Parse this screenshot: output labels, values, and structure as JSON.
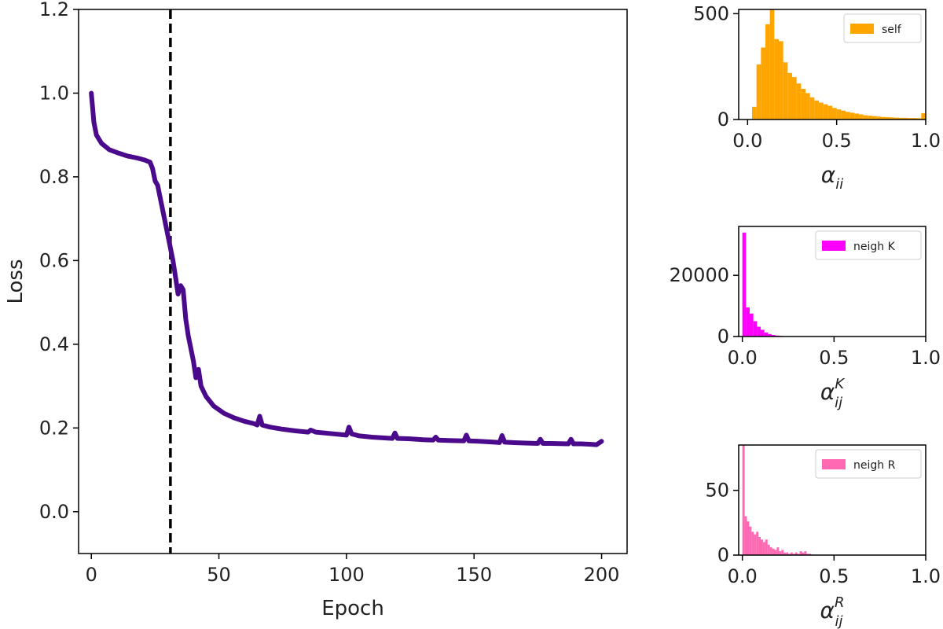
{
  "chart_data": [
    {
      "id": "loss",
      "type": "line",
      "xlabel": "Epoch",
      "ylabel": "Loss",
      "xlim": [
        -5,
        210
      ],
      "ylim": [
        -0.1,
        1.2
      ],
      "xticks": [
        0,
        50,
        100,
        150,
        200
      ],
      "xtick_labels": [
        "0",
        "50",
        "100",
        "150",
        "200"
      ],
      "yticks": [
        0.0,
        0.2,
        0.4,
        0.6,
        0.8,
        1.0,
        1.2
      ],
      "ytick_labels": [
        "0.0",
        "0.2",
        "0.4",
        "0.6",
        "0.8",
        "1.0",
        "1.2"
      ],
      "line_color": "#4b0a8c",
      "vline": {
        "x": 31,
        "color": "#000000",
        "style": "dashed"
      },
      "series": [
        {
          "name": "loss",
          "x": [
            0,
            1,
            2,
            4,
            7,
            10,
            14,
            18,
            21,
            23,
            24,
            25,
            26,
            28,
            30,
            32,
            33,
            34,
            35,
            36,
            37,
            38,
            40,
            41,
            42,
            43,
            45,
            48,
            52,
            56,
            60,
            64,
            65,
            66,
            67,
            70,
            75,
            80,
            85,
            86,
            88,
            95,
            100,
            101,
            102,
            105,
            110,
            118,
            119,
            120,
            125,
            130,
            134,
            135,
            136,
            140,
            146,
            147,
            148,
            152,
            158,
            160,
            161,
            162,
            165,
            170,
            175,
            176,
            177,
            180,
            187,
            188,
            189,
            192,
            196,
            198,
            200
          ],
          "y": [
            1.0,
            0.93,
            0.9,
            0.88,
            0.865,
            0.858,
            0.85,
            0.845,
            0.84,
            0.835,
            0.82,
            0.79,
            0.78,
            0.72,
            0.66,
            0.6,
            0.56,
            0.52,
            0.54,
            0.53,
            0.46,
            0.42,
            0.36,
            0.32,
            0.34,
            0.3,
            0.275,
            0.252,
            0.235,
            0.224,
            0.216,
            0.21,
            0.207,
            0.228,
            0.207,
            0.202,
            0.197,
            0.193,
            0.19,
            0.195,
            0.19,
            0.186,
            0.183,
            0.202,
            0.186,
            0.181,
            0.178,
            0.175,
            0.188,
            0.175,
            0.174,
            0.172,
            0.171,
            0.178,
            0.171,
            0.17,
            0.169,
            0.183,
            0.169,
            0.168,
            0.166,
            0.165,
            0.182,
            0.166,
            0.165,
            0.164,
            0.163,
            0.173,
            0.163,
            0.163,
            0.162,
            0.173,
            0.162,
            0.162,
            0.161,
            0.16,
            0.168
          ]
        }
      ]
    },
    {
      "id": "self",
      "type": "bar",
      "histogram": true,
      "color": "#ffa500",
      "legend": "self",
      "xlabel_base": "α",
      "xlabel_sub": "ii",
      "xlabel_sup": "",
      "xlim": [
        -0.05,
        1.0
      ],
      "ylim": [
        0,
        520
      ],
      "xticks": [
        0.0,
        0.5,
        1.0
      ],
      "xtick_labels": [
        "0.0",
        "0.5",
        "1.0"
      ],
      "yticks": [
        0,
        500
      ],
      "ytick_labels": [
        "0",
        "500"
      ],
      "bin_start": 0.0,
      "bin_width": 0.025,
      "values": [
        0,
        60,
        260,
        340,
        450,
        520,
        380,
        370,
        270,
        220,
        200,
        170,
        145,
        125,
        105,
        90,
        80,
        72,
        65,
        55,
        48,
        42,
        36,
        32,
        28,
        24,
        20,
        18,
        16,
        14,
        12,
        11,
        10,
        9,
        8,
        8,
        7,
        7,
        6,
        30
      ]
    },
    {
      "id": "neighK",
      "type": "bar",
      "histogram": true,
      "color": "#ff00ff",
      "legend": "neigh K",
      "xlabel_base": "α",
      "xlabel_sub": "ij",
      "xlabel_sup": "K",
      "xlim": [
        -0.02,
        1.0
      ],
      "ylim": [
        0,
        36000
      ],
      "xticks": [
        0.0,
        0.5,
        1.0
      ],
      "xtick_labels": [
        "0.0",
        "0.5",
        "1.0"
      ],
      "yticks": [
        0,
        20000
      ],
      "ytick_labels": [
        "0",
        "20000"
      ],
      "bin_start": 0.0,
      "bin_width": 0.02,
      "values": [
        34000,
        9500,
        7500,
        5000,
        3200,
        2200,
        1300,
        800,
        500,
        300,
        200,
        120,
        80,
        50,
        30,
        20
      ]
    },
    {
      "id": "neighR",
      "type": "bar",
      "histogram": true,
      "color": "#ff69b4",
      "legend": "neigh R",
      "xlabel_base": "α",
      "xlabel_sub": "ij",
      "xlabel_sup": "R",
      "xlim": [
        -0.02,
        1.0
      ],
      "ylim": [
        0,
        85
      ],
      "xticks": [
        0.0,
        0.5,
        1.0
      ],
      "xtick_labels": [
        "0.0",
        "0.5",
        "1.0"
      ],
      "yticks": [
        0,
        50
      ],
      "ytick_labels": [
        "0",
        "50"
      ],
      "bin_start": 0.0,
      "bin_width": 0.0125,
      "values": [
        85,
        30,
        26,
        22,
        18,
        16,
        18,
        14,
        12,
        10,
        12,
        8,
        6,
        5,
        4,
        6,
        3,
        4,
        2,
        2,
        1,
        2,
        1,
        2,
        1,
        3,
        2,
        3,
        1,
        1
      ]
    }
  ]
}
